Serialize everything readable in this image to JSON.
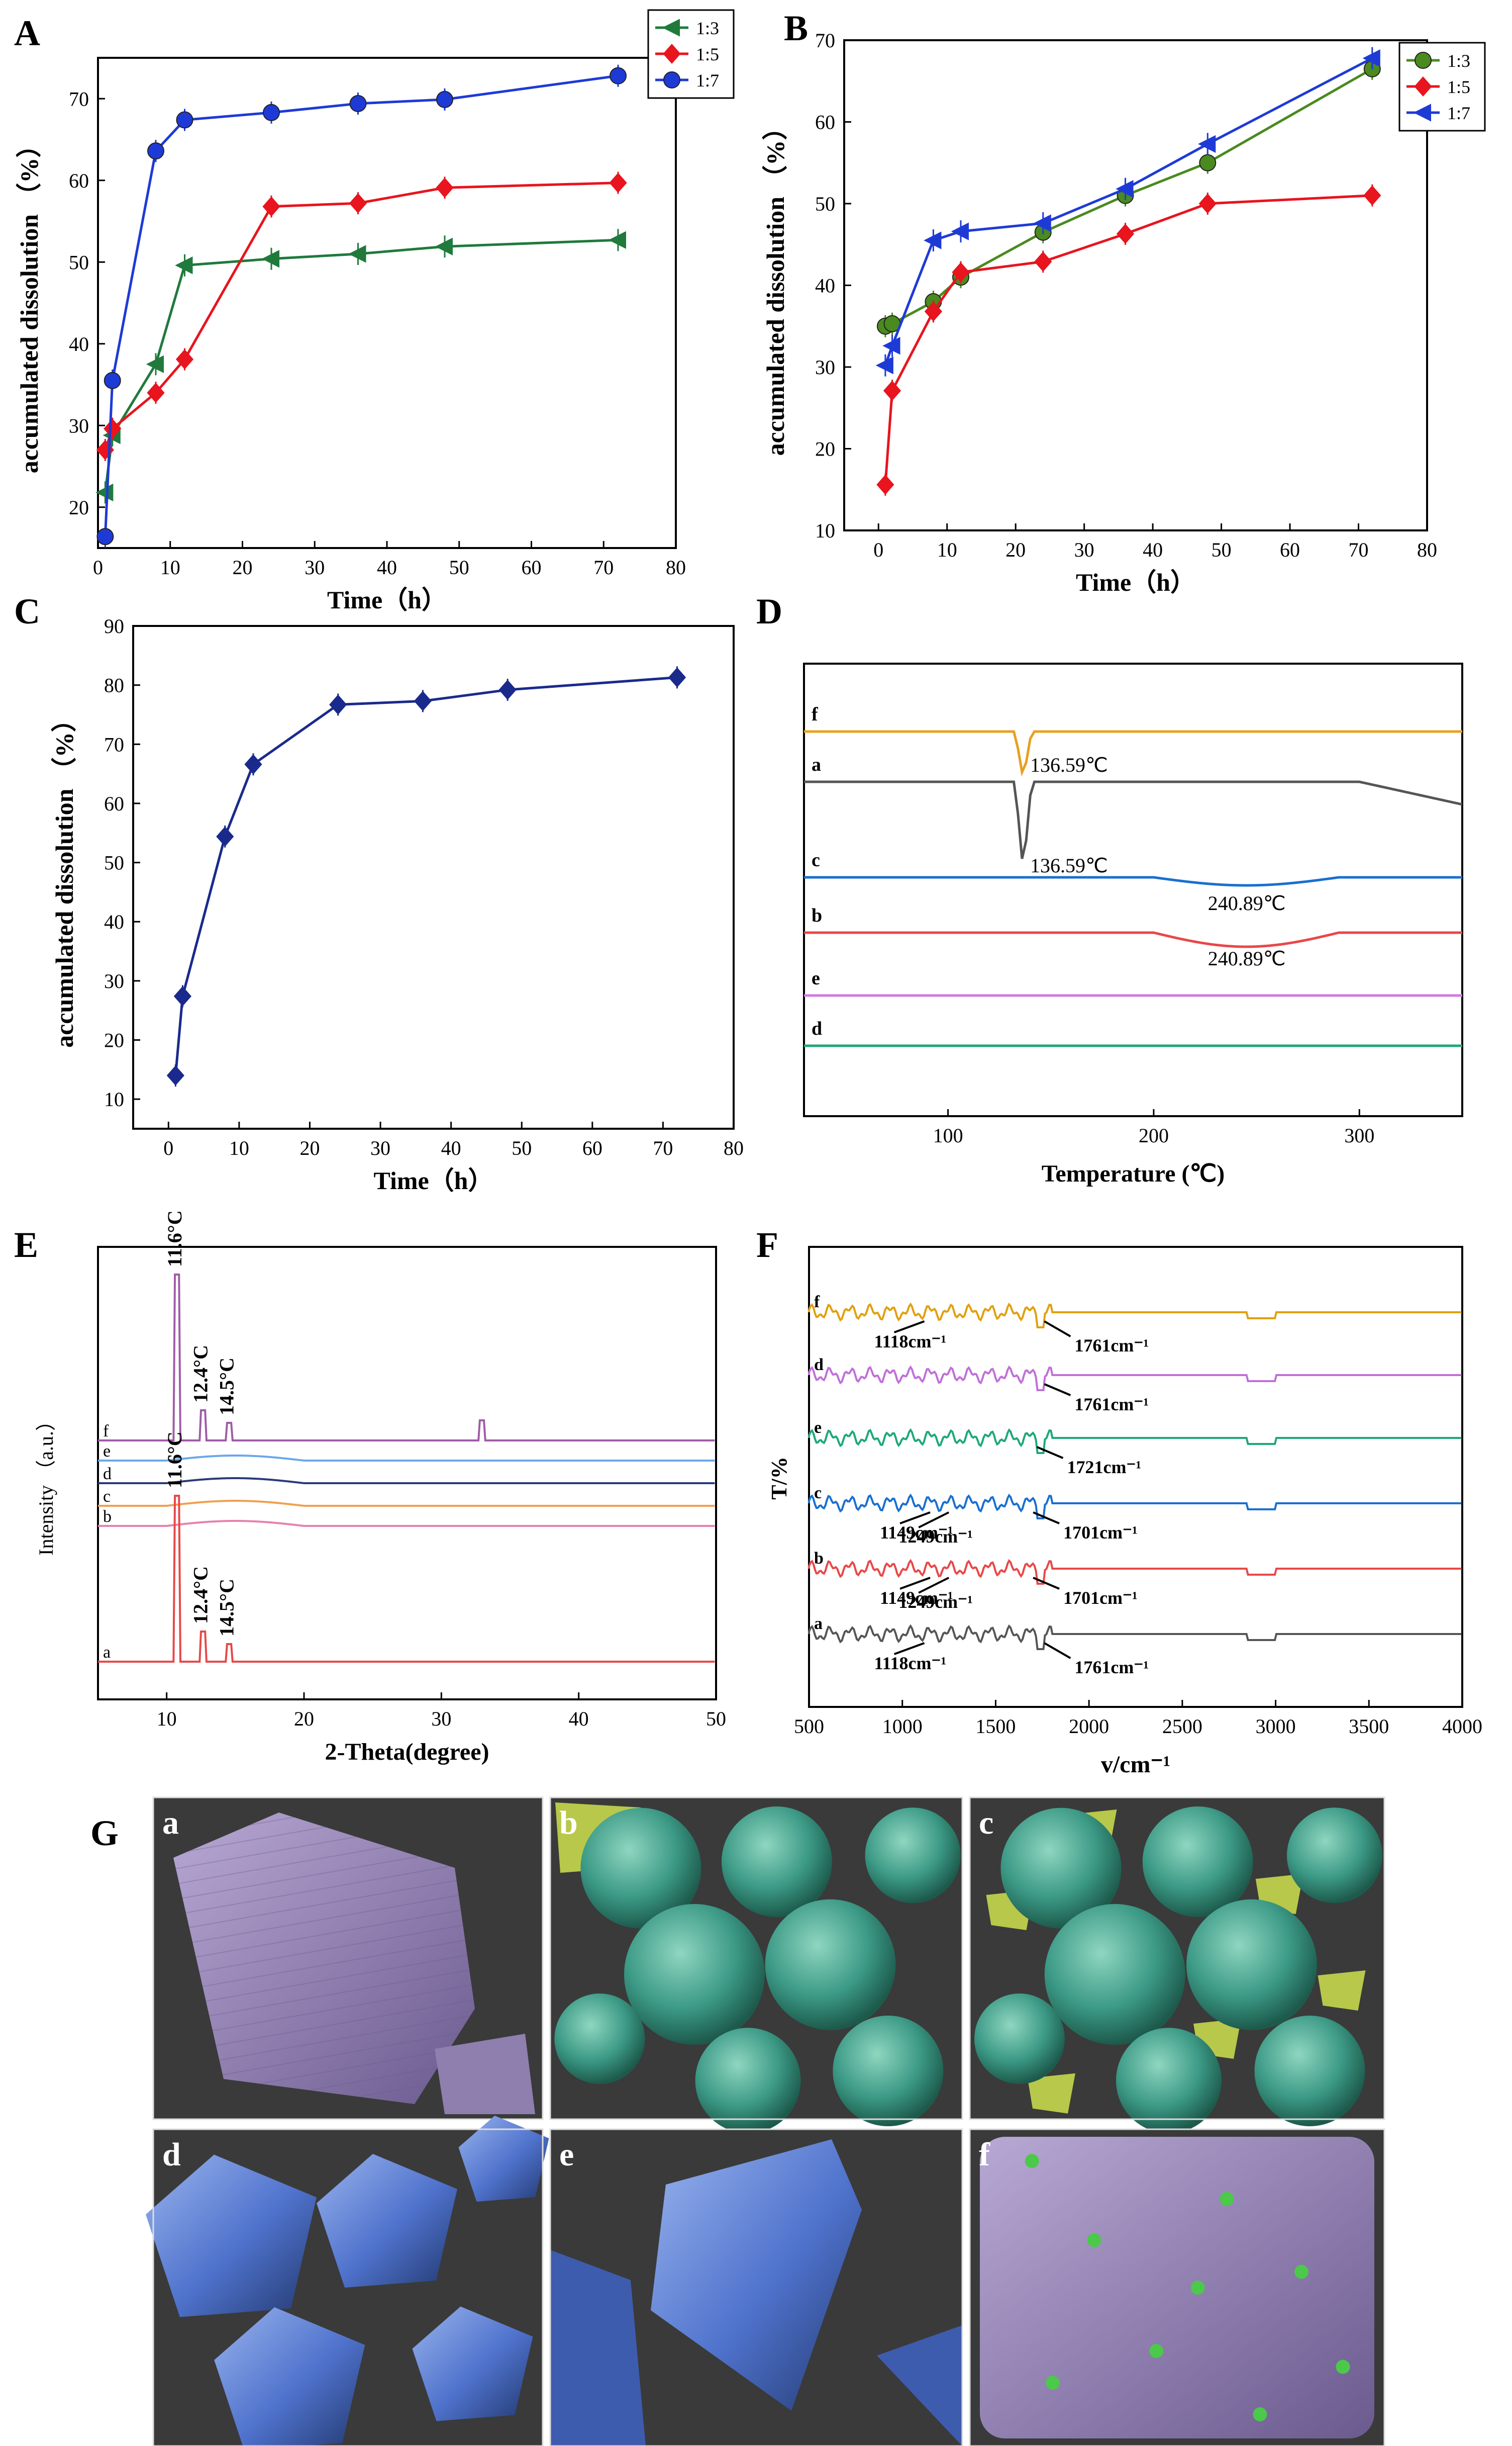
{
  "panel_letters": {
    "A": "A",
    "B": "B",
    "C": "C",
    "D": "D",
    "E": "E",
    "F": "F",
    "G": "G"
  },
  "chart_data": [
    {
      "panel": "A",
      "type": "line",
      "xlabel": "Time（h）",
      "ylabel": "accumulated dissolution （%）",
      "xlim": [
        0,
        80
      ],
      "ylim": [
        15,
        75
      ],
      "xticks": [
        0,
        10,
        20,
        30,
        40,
        50,
        60,
        70,
        80
      ],
      "yticks": [
        20,
        30,
        40,
        50,
        60,
        70
      ],
      "legend_position": "top-right",
      "series": [
        {
          "name": "1:3",
          "color": "#1f7a3c",
          "marker": "triangle-left",
          "x": [
            1,
            2,
            8,
            12,
            24,
            36,
            48,
            72
          ],
          "y": [
            21.8,
            28.8,
            37.5,
            49.6,
            50.4,
            51.0,
            51.9,
            52.7
          ]
        },
        {
          "name": "1:5",
          "color": "#e8141e",
          "marker": "diamond",
          "x": [
            1,
            2,
            8,
            12,
            24,
            36,
            48,
            72
          ],
          "y": [
            27.0,
            29.6,
            34.0,
            38.1,
            56.8,
            57.2,
            59.1,
            59.7
          ]
        },
        {
          "name": "1:7",
          "color": "#1e3ad6",
          "marker": "circle",
          "x": [
            1,
            2,
            8,
            12,
            24,
            36,
            48,
            72
          ],
          "y": [
            16.4,
            35.5,
            63.6,
            67.4,
            68.3,
            69.4,
            69.9,
            72.8
          ]
        }
      ]
    },
    {
      "panel": "B",
      "type": "line",
      "xlabel": "Time（h）",
      "ylabel": "accumulated dissolution （%）",
      "xlim": [
        -5,
        80
      ],
      "ylim": [
        10,
        70
      ],
      "xticks": [
        0,
        10,
        20,
        30,
        40,
        50,
        60,
        70,
        80
      ],
      "yticks": [
        10,
        20,
        30,
        40,
        50,
        60,
        70
      ],
      "legend_position": "top-right",
      "series": [
        {
          "name": "1:3",
          "color": "#4a8a1e",
          "marker": "circle",
          "x": [
            1,
            2,
            8,
            12,
            24,
            36,
            48,
            72
          ],
          "y": [
            35.0,
            35.3,
            38.0,
            41.0,
            46.5,
            51.0,
            55.0,
            66.5
          ]
        },
        {
          "name": "1:5",
          "color": "#e8141e",
          "marker": "diamond",
          "x": [
            1,
            2,
            8,
            12,
            24,
            36,
            48,
            72
          ],
          "y": [
            15.6,
            27.1,
            36.8,
            41.6,
            42.9,
            46.3,
            50.0,
            51.0
          ]
        },
        {
          "name": "1:7",
          "color": "#1e3ad6",
          "marker": "triangle-left",
          "x": [
            1,
            2,
            8,
            12,
            24,
            36,
            48,
            72
          ],
          "y": [
            30.2,
            32.6,
            45.5,
            46.6,
            47.6,
            51.8,
            57.3,
            67.8
          ]
        }
      ]
    },
    {
      "panel": "C",
      "type": "line",
      "xlabel": "Time（h）",
      "ylabel": "accumulated dissolution （%）",
      "xlim": [
        -5,
        80
      ],
      "ylim": [
        5,
        90
      ],
      "xticks": [
        0,
        10,
        20,
        30,
        40,
        50,
        60,
        70,
        80
      ],
      "yticks": [
        10,
        20,
        30,
        40,
        50,
        60,
        70,
        80,
        90
      ],
      "series": [
        {
          "name": "",
          "color": "#1a2a8c",
          "marker": "diamond",
          "x": [
            1,
            2,
            8,
            12,
            24,
            36,
            48,
            72
          ],
          "y": [
            14.0,
            27.4,
            54.4,
            66.6,
            76.7,
            77.3,
            79.2,
            81.3
          ]
        }
      ]
    },
    {
      "panel": "D",
      "type": "line",
      "xlabel": "Temperature (℃)",
      "xlim": [
        30,
        350
      ],
      "xticks": [
        100,
        200,
        300
      ],
      "traces": [
        {
          "label": "f",
          "color": "#e8a020",
          "annotation": "136.59℃"
        },
        {
          "label": "a",
          "color": "#555555",
          "annotation": "136.59℃"
        },
        {
          "label": "c",
          "color": "#1a6fd0",
          "annotation": "240.89℃"
        },
        {
          "label": "b",
          "color": "#e8474a",
          "annotation": "240.89℃"
        },
        {
          "label": "e",
          "color": "#d27ae0",
          "annotation": ""
        },
        {
          "label": "d",
          "color": "#1ea87a",
          "annotation": ""
        }
      ]
    },
    {
      "panel": "E",
      "type": "line",
      "xlabel": "2-Theta(degree)",
      "ylabel": "Intensity （a.u.）",
      "xlim": [
        5,
        50
      ],
      "xticks": [
        10,
        20,
        30,
        40,
        50
      ],
      "traces": [
        {
          "label": "f",
          "color": "#a05ca8",
          "peaks": [
            "11.6°C",
            "12.4°C",
            "14.5°C"
          ]
        },
        {
          "label": "e",
          "color": "#6aa8e8",
          "peaks": []
        },
        {
          "label": "d",
          "color": "#2a3a7a",
          "peaks": []
        },
        {
          "label": "c",
          "color": "#f0a050",
          "peaks": []
        },
        {
          "label": "b",
          "color": "#e880b0",
          "peaks": []
        },
        {
          "label": "a",
          "color": "#e84848",
          "peaks": [
            "11.6°C",
            "12.4°C",
            "14.5°C"
          ]
        }
      ]
    },
    {
      "panel": "F",
      "type": "line",
      "xlabel": "v/cm⁻¹",
      "ylabel": "T/%",
      "xlim": [
        500,
        4000
      ],
      "xticks": [
        500,
        1000,
        1500,
        2000,
        2500,
        3000,
        3500,
        4000
      ],
      "traces": [
        {
          "label": "f",
          "color": "#e0a010",
          "annotations": [
            "1118cm⁻¹",
            "1761cm⁻¹"
          ]
        },
        {
          "label": "d",
          "color": "#c070d8",
          "annotations": [
            "1761cm⁻¹"
          ]
        },
        {
          "label": "e",
          "color": "#1ea87a",
          "annotations": [
            "1721cm⁻¹"
          ]
        },
        {
          "label": "c",
          "color": "#1a6fd0",
          "annotations": [
            "1149cm⁻¹",
            "1249cm⁻¹",
            "1701cm⁻¹"
          ]
        },
        {
          "label": "b",
          "color": "#e84848",
          "annotations": [
            "1149cm⁻¹",
            "1249cm⁻¹",
            "1701cm⁻¹"
          ]
        },
        {
          "label": "a",
          "color": "#555555",
          "annotations": [
            "1118cm⁻¹",
            "1761cm⁻¹"
          ]
        }
      ]
    }
  ],
  "sem_images": [
    {
      "label": "a",
      "style": "purple-crystal"
    },
    {
      "label": "b",
      "style": "green-spheres"
    },
    {
      "label": "c",
      "style": "green-spheres-shards"
    },
    {
      "label": "d",
      "style": "blue-crystals"
    },
    {
      "label": "e",
      "style": "blue-crystal-large"
    },
    {
      "label": "f",
      "style": "purple-rough-green-dots"
    }
  ]
}
